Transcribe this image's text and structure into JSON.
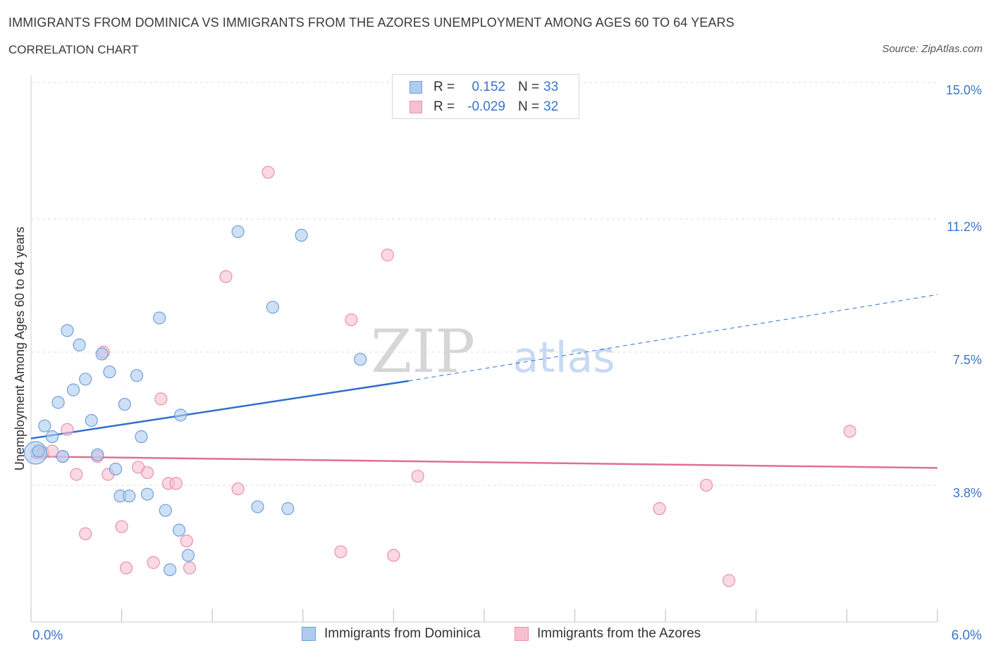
{
  "header": {
    "title": "IMMIGRANTS FROM DOMINICA VS IMMIGRANTS FROM THE AZORES UNEMPLOYMENT AMONG AGES 60 TO 64 YEARS",
    "subtitle": "CORRELATION CHART",
    "source": "Source: ZipAtlas.com"
  },
  "watermark": {
    "zip": "ZIP",
    "atlas": "atlas"
  },
  "colors": {
    "blue_fill": "#aecbf0",
    "blue_stroke": "#6fa0dc",
    "blue_line": "#2e6fd0",
    "pink_fill": "#f7c0d0",
    "pink_stroke": "#ea90aa",
    "pink_line": "#e0708f",
    "tick_text": "#3b74c8",
    "grid": "#dddddd"
  },
  "legend": {
    "rows": [
      {
        "r_label": "R =",
        "r_value": "0.152",
        "n_label": "N =",
        "n_value": "33"
      },
      {
        "r_label": "R =",
        "r_value": "-0.029",
        "n_label": "N =",
        "n_value": "32"
      }
    ]
  },
  "chart_data": {
    "type": "scatter",
    "title": "IMMIGRANTS FROM DOMINICA VS IMMIGRANTS FROM THE AZORES UNEMPLOYMENT AMONG AGES 60 TO 64 YEARS",
    "xlabel": "",
    "ylabel": "Unemployment Among Ages 60 to 64 years",
    "xlim": [
      0,
      6
    ],
    "ylim": [
      0,
      15
    ],
    "x_tick_labels": [
      "0.0%",
      "6.0%"
    ],
    "y_ticks": [
      3.8,
      7.5,
      11.2,
      15.0
    ],
    "y_tick_labels": [
      "3.8%",
      "7.5%",
      "11.2%",
      "15.0%"
    ],
    "grid": true,
    "legend_position": "top-center",
    "series": [
      {
        "name": "Immigrants from Dominica",
        "r": 0.152,
        "n": 33,
        "trend": {
          "x0": 0.0,
          "y0": 5.1,
          "x1": 2.5,
          "y1": 6.7,
          "dashed_to_x": 6.0,
          "dashed_to_y": 9.1
        },
        "points": [
          {
            "x": 0.03,
            "y": 4.7,
            "big": true
          },
          {
            "x": 0.05,
            "y": 4.75
          },
          {
            "x": 0.09,
            "y": 5.45
          },
          {
            "x": 0.14,
            "y": 5.15
          },
          {
            "x": 0.18,
            "y": 6.1
          },
          {
            "x": 0.21,
            "y": 4.6
          },
          {
            "x": 0.24,
            "y": 8.1
          },
          {
            "x": 0.28,
            "y": 6.45
          },
          {
            "x": 0.32,
            "y": 7.7
          },
          {
            "x": 0.36,
            "y": 6.75
          },
          {
            "x": 0.4,
            "y": 5.6
          },
          {
            "x": 0.44,
            "y": 4.65
          },
          {
            "x": 0.47,
            "y": 7.45
          },
          {
            "x": 0.52,
            "y": 6.95
          },
          {
            "x": 0.56,
            "y": 4.25
          },
          {
            "x": 0.59,
            "y": 3.5
          },
          {
            "x": 0.62,
            "y": 6.05
          },
          {
            "x": 0.65,
            "y": 3.5
          },
          {
            "x": 0.7,
            "y": 6.85
          },
          {
            "x": 0.73,
            "y": 5.15
          },
          {
            "x": 0.77,
            "y": 3.55
          },
          {
            "x": 0.85,
            "y": 8.45
          },
          {
            "x": 0.89,
            "y": 3.1
          },
          {
            "x": 0.92,
            "y": 1.45
          },
          {
            "x": 0.98,
            "y": 2.55
          },
          {
            "x": 0.99,
            "y": 5.75
          },
          {
            "x": 1.04,
            "y": 1.85
          },
          {
            "x": 1.37,
            "y": 10.85
          },
          {
            "x": 1.5,
            "y": 3.2
          },
          {
            "x": 1.6,
            "y": 8.75
          },
          {
            "x": 1.7,
            "y": 3.15
          },
          {
            "x": 1.79,
            "y": 10.75
          },
          {
            "x": 2.18,
            "y": 7.3
          }
        ]
      },
      {
        "name": "Immigrants from the Azores",
        "r": -0.029,
        "n": 32,
        "trend": {
          "x0": 0.0,
          "y0": 4.6,
          "x1": 6.0,
          "y1": 4.28
        },
        "points": [
          {
            "x": 0.04,
            "y": 4.7
          },
          {
            "x": 0.08,
            "y": 4.7
          },
          {
            "x": 0.14,
            "y": 4.75
          },
          {
            "x": 0.21,
            "y": 4.6
          },
          {
            "x": 0.24,
            "y": 5.35
          },
          {
            "x": 0.3,
            "y": 4.1
          },
          {
            "x": 0.36,
            "y": 2.45
          },
          {
            "x": 0.44,
            "y": 4.6
          },
          {
            "x": 0.48,
            "y": 7.5
          },
          {
            "x": 0.51,
            "y": 4.1
          },
          {
            "x": 0.6,
            "y": 2.65
          },
          {
            "x": 0.63,
            "y": 1.5
          },
          {
            "x": 0.71,
            "y": 4.3
          },
          {
            "x": 0.77,
            "y": 4.15
          },
          {
            "x": 0.81,
            "y": 1.65
          },
          {
            "x": 0.86,
            "y": 6.2
          },
          {
            "x": 0.91,
            "y": 3.85
          },
          {
            "x": 0.96,
            "y": 3.85
          },
          {
            "x": 1.03,
            "y": 2.25
          },
          {
            "x": 1.05,
            "y": 1.5
          },
          {
            "x": 1.29,
            "y": 9.6
          },
          {
            "x": 1.37,
            "y": 3.7
          },
          {
            "x": 1.57,
            "y": 12.5
          },
          {
            "x": 2.05,
            "y": 1.95
          },
          {
            "x": 2.12,
            "y": 8.4
          },
          {
            "x": 2.4,
            "y": 1.85
          },
          {
            "x": 2.36,
            "y": 10.2
          },
          {
            "x": 2.56,
            "y": 4.05
          },
          {
            "x": 4.16,
            "y": 3.15
          },
          {
            "x": 4.47,
            "y": 3.8
          },
          {
            "x": 4.62,
            "y": 1.15
          },
          {
            "x": 5.42,
            "y": 5.3
          }
        ]
      }
    ]
  }
}
